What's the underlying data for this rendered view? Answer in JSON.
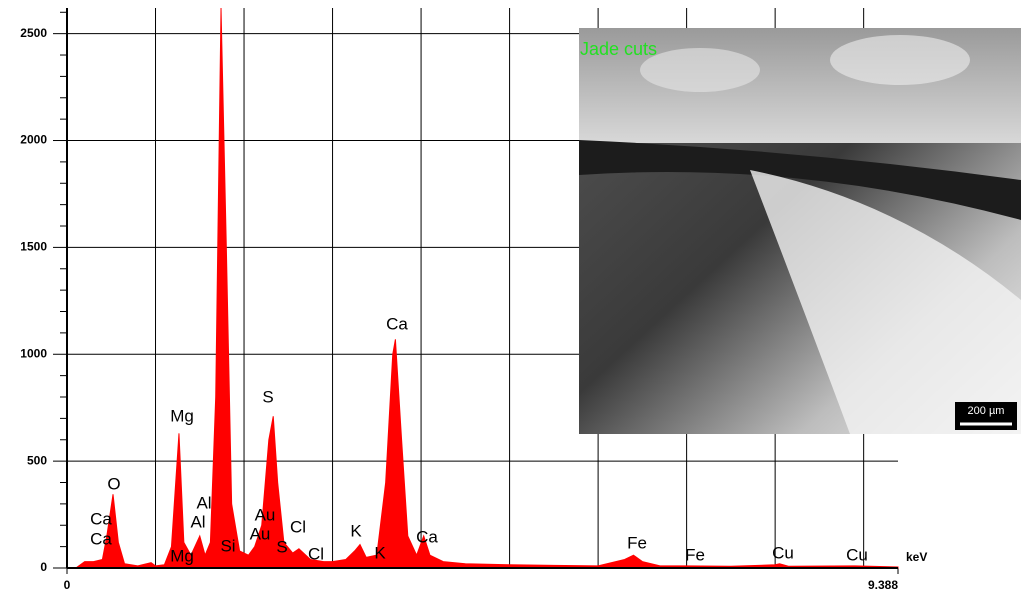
{
  "chart_data": {
    "type": "area",
    "x_unit": "keV",
    "color": "#ff0000",
    "x": [
      0.1,
      0.2,
      0.3,
      0.4,
      0.45,
      0.52,
      0.58,
      0.65,
      0.8,
      0.95,
      1.0,
      1.1,
      1.18,
      1.265,
      1.32,
      1.4,
      1.5,
      1.56,
      1.62,
      1.68,
      1.74,
      1.8,
      1.86,
      1.95,
      2.05,
      2.12,
      2.2,
      2.28,
      2.33,
      2.38,
      2.45,
      2.55,
      2.62,
      2.75,
      2.9,
      3.0,
      3.15,
      3.25,
      3.31,
      3.38,
      3.5,
      3.6,
      3.68,
      3.71,
      3.78,
      3.85,
      3.95,
      4.03,
      4.1,
      4.25,
      4.5,
      5.0,
      5.5,
      6.0,
      6.3,
      6.4,
      6.5,
      6.7,
      7.0,
      7.5,
      8.0,
      8.05,
      8.15,
      8.9,
      9.388
    ],
    "values": [
      0,
      30,
      30,
      40,
      150,
      345,
      120,
      20,
      10,
      25,
      10,
      15,
      100,
      630,
      120,
      60,
      150,
      60,
      120,
      800,
      2620,
      1500,
      300,
      80,
      60,
      100,
      200,
      600,
      710,
      400,
      120,
      70,
      90,
      40,
      30,
      30,
      40,
      80,
      110,
      50,
      60,
      400,
      1000,
      1070,
      600,
      150,
      60,
      150,
      60,
      30,
      20,
      15,
      12,
      10,
      40,
      60,
      30,
      10,
      10,
      8,
      15,
      20,
      8,
      10,
      5
    ],
    "xlim": [
      0,
      9.388
    ],
    "xticks": [
      0,
      9.388
    ],
    "xgrid": [
      1,
      2,
      3,
      4,
      5,
      6,
      7,
      8,
      9
    ],
    "ylim": [
      0,
      2620
    ],
    "yticks": [
      0,
      500,
      1000,
      1500,
      2000,
      2500
    ],
    "grid": true,
    "annotations": [
      "O",
      "Ca",
      "Ca",
      "Mg",
      "Al",
      "Al",
      "Mg",
      "Si",
      "S",
      "Au",
      "Au",
      "S",
      "Cl",
      "Cl",
      "K",
      "K",
      "Ca",
      "Ca",
      "Fe",
      "Fe",
      "Cu",
      "Cu"
    ]
  },
  "inset": {
    "label": "Jade cuts",
    "scale_bar": "200 µm"
  }
}
